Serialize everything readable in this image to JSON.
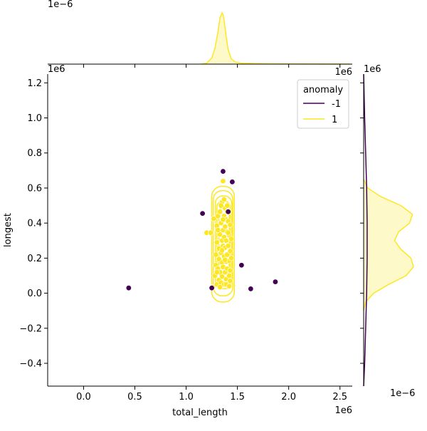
{
  "chart_data": {
    "type": "scatter",
    "title": "",
    "xlabel": "total_length",
    "ylabel": "longest",
    "x_offset_label": "1e6",
    "y_offset_label": "1e6",
    "top_marginal_offset_label": "1e−6",
    "right_marginal_offset_label": "1e−6",
    "top_marginal_corner_label": "1e6",
    "right_marginal_corner_label": "1e6",
    "xlim": [
      -0.35,
      2.62
    ],
    "ylim": [
      -0.53,
      1.25
    ],
    "xticks": [
      0.0,
      0.5,
      1.0,
      1.5,
      2.0,
      2.5
    ],
    "xtick_labels": [
      "0.0",
      "0.5",
      "1.0",
      "1.5",
      "2.0",
      "2.5"
    ],
    "yticks": [
      -0.4,
      -0.2,
      0.0,
      0.2,
      0.4,
      0.6,
      0.8,
      1.0,
      1.2
    ],
    "ytick_labels": [
      "−0.4",
      "−0.2",
      "0.0",
      "0.2",
      "0.4",
      "0.6",
      "0.8",
      "1.0",
      "1.2"
    ],
    "grid": false,
    "legend": {
      "title": "anomaly",
      "placement": "top-right",
      "entries": [
        {
          "label": "-1",
          "color": "#440154"
        },
        {
          "label": "1",
          "color": "#fde725"
        }
      ]
    },
    "series": [
      {
        "name": "-1",
        "color": "#440154",
        "points": [
          [
            0.44,
            0.03
          ],
          [
            1.16,
            0.455
          ],
          [
            1.25,
            0.03
          ],
          [
            1.36,
            0.695
          ],
          [
            1.45,
            0.635
          ],
          [
            1.41,
            0.465
          ],
          [
            1.54,
            0.16
          ],
          [
            1.63,
            0.025
          ],
          [
            1.87,
            0.065
          ]
        ]
      },
      {
        "name": "1",
        "color": "#fde725",
        "points": [
          [
            1.2,
            0.345
          ],
          [
            1.24,
            0.345
          ],
          [
            1.26,
            0.035
          ],
          [
            1.27,
            0.425
          ],
          [
            1.28,
            0.1
          ],
          [
            1.29,
            0.22
          ],
          [
            1.29,
            0.16
          ],
          [
            1.3,
            0.29
          ],
          [
            1.3,
            0.05
          ],
          [
            1.3,
            0.385
          ],
          [
            1.31,
            0.44
          ],
          [
            1.31,
            0.14
          ],
          [
            1.32,
            0.255
          ],
          [
            1.32,
            0.075
          ],
          [
            1.32,
            0.195
          ],
          [
            1.33,
            0.465
          ],
          [
            1.33,
            0.335
          ],
          [
            1.33,
            0.12
          ],
          [
            1.34,
            0.23
          ],
          [
            1.34,
            0.4
          ],
          [
            1.34,
            0.06
          ],
          [
            1.35,
            0.3
          ],
          [
            1.35,
            0.175
          ],
          [
            1.35,
            0.52
          ],
          [
            1.35,
            0.095
          ],
          [
            1.36,
            0.64
          ],
          [
            1.36,
            0.36
          ],
          [
            1.36,
            0.27
          ],
          [
            1.36,
            0.15
          ],
          [
            1.37,
            0.44
          ],
          [
            1.37,
            0.05
          ],
          [
            1.37,
            0.21
          ],
          [
            1.37,
            0.32
          ],
          [
            1.38,
            0.485
          ],
          [
            1.38,
            0.12
          ],
          [
            1.38,
            0.38
          ],
          [
            1.38,
            0.26
          ],
          [
            1.39,
            0.18
          ],
          [
            1.39,
            0.42
          ],
          [
            1.39,
            0.08
          ],
          [
            1.39,
            0.3
          ],
          [
            1.4,
            0.465
          ],
          [
            1.4,
            0.22
          ],
          [
            1.4,
            0.14
          ],
          [
            1.4,
            0.35
          ],
          [
            1.41,
            0.055
          ],
          [
            1.41,
            0.27
          ],
          [
            1.41,
            0.41
          ],
          [
            1.42,
            0.185
          ],
          [
            1.42,
            0.1
          ],
          [
            1.42,
            0.33
          ],
          [
            1.42,
            0.465
          ],
          [
            1.43,
            0.24
          ],
          [
            1.43,
            0.13
          ],
          [
            1.43,
            0.39
          ],
          [
            1.43,
            0.07
          ],
          [
            1.34,
            0.5
          ],
          [
            1.37,
            0.535
          ],
          [
            1.4,
            0.5
          ],
          [
            1.31,
            0.36
          ],
          [
            1.33,
            0.035
          ],
          [
            1.36,
            0.42
          ],
          [
            1.39,
            0.05
          ],
          [
            1.42,
            0.04
          ],
          [
            1.3,
            0.12
          ],
          [
            1.35,
            0.245
          ],
          [
            1.38,
            0.19
          ],
          [
            1.41,
            0.345
          ],
          [
            1.44,
            0.2
          ],
          [
            1.44,
            0.31
          ]
        ]
      }
    ],
    "contours": [
      {
        "series": "1",
        "color": "#fde725",
        "center": [
          1.36,
          0.28
        ],
        "half_widths": [
          0.11,
          0.33
        ]
      },
      {
        "series": "1",
        "color": "#fde725",
        "center": [
          1.36,
          0.285
        ],
        "half_widths": [
          0.095,
          0.3
        ]
      },
      {
        "series": "1",
        "color": "#fde725",
        "center": [
          1.365,
          0.29
        ],
        "half_widths": [
          0.08,
          0.265
        ]
      },
      {
        "series": "1",
        "color": "#fde725",
        "center": [
          1.365,
          0.295
        ],
        "half_widths": [
          0.065,
          0.23
        ]
      },
      {
        "series": "1",
        "color": "#fde725",
        "center": [
          1.37,
          0.3
        ],
        "half_widths": [
          0.05,
          0.19
        ]
      }
    ],
    "marginal_x": {
      "series": "1",
      "color": "#fde725",
      "x": [
        1.15,
        1.2,
        1.25,
        1.28,
        1.31,
        1.33,
        1.35,
        1.36,
        1.37,
        1.39,
        1.41,
        1.44,
        1.48,
        1.55,
        1.7,
        2.0,
        2.3,
        2.6
      ],
      "density": [
        0.0,
        0.02,
        0.12,
        0.3,
        0.62,
        0.9,
        1.0,
        0.97,
        0.85,
        0.55,
        0.28,
        0.1,
        0.04,
        0.015,
        0.008,
        0.003,
        0.001,
        0.0
      ]
    },
    "marginal_y": {
      "series": [
        {
          "name": "1",
          "color": "#fde725",
          "y": [
            -0.1,
            -0.05,
            0.0,
            0.05,
            0.1,
            0.15,
            0.2,
            0.25,
            0.3,
            0.35,
            0.4,
            0.45,
            0.5,
            0.55,
            0.6,
            0.65
          ],
          "density": [
            0.0,
            0.04,
            0.2,
            0.5,
            0.85,
            1.0,
            0.95,
            0.75,
            0.62,
            0.7,
            0.92,
            0.98,
            0.75,
            0.35,
            0.08,
            0.0
          ]
        },
        {
          "name": "-1",
          "color": "#440154",
          "y": [
            -0.53,
            -0.4,
            -0.2,
            0.0,
            0.2,
            0.4,
            0.6,
            0.8,
            1.0,
            1.25
          ],
          "density": [
            0.0,
            0.02,
            0.04,
            0.06,
            0.07,
            0.07,
            0.06,
            0.04,
            0.02,
            0.0
          ]
        }
      ]
    }
  }
}
